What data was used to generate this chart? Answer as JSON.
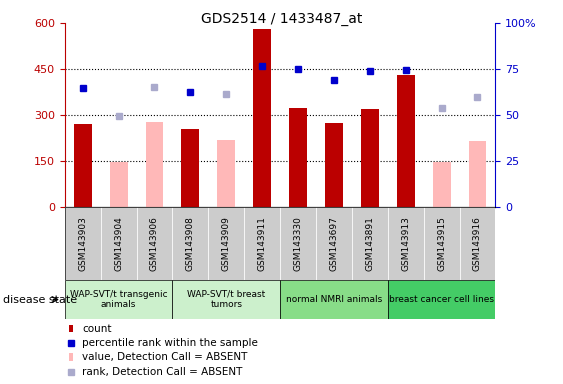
{
  "title": "GDS2514 / 1433487_at",
  "samples": [
    "GSM143903",
    "GSM143904",
    "GSM143906",
    "GSM143908",
    "GSM143909",
    "GSM143911",
    "GSM143330",
    "GSM143697",
    "GSM143891",
    "GSM143913",
    "GSM143915",
    "GSM143916"
  ],
  "count_values": [
    270,
    null,
    null,
    255,
    null,
    580,
    325,
    275,
    320,
    430,
    null,
    null
  ],
  "absent_value_bars": [
    null,
    148,
    278,
    null,
    220,
    null,
    null,
    null,
    null,
    null,
    148,
    215
  ],
  "blue_squares": [
    390,
    null,
    null,
    375,
    null,
    460,
    450,
    415,
    445,
    448,
    null,
    null
  ],
  "lavender_squares": [
    null,
    298,
    392,
    null,
    370,
    null,
    null,
    null,
    null,
    null,
    325,
    358
  ],
  "ylim_left": [
    0,
    600
  ],
  "ylim_right": [
    0,
    100
  ],
  "yticks_left": [
    0,
    150,
    300,
    450,
    600
  ],
  "yticks_right": [
    0,
    25,
    50,
    75,
    100
  ],
  "ytick_labels_right": [
    "0",
    "25",
    "50",
    "75",
    "100%"
  ],
  "bar_color_dark": "#bb0000",
  "bar_color_pink": "#ffb8b8",
  "blue_sq_color": "#0000cc",
  "lavender_sq_color": "#aaaacc",
  "tick_bg_color": "#cccccc",
  "group_sample_list": [
    {
      "samples": [
        "GSM143903",
        "GSM143904",
        "GSM143906"
      ],
      "label": "WAP-SVT/t transgenic\nanimals",
      "color": "#ccf0cc"
    },
    {
      "samples": [
        "GSM143908",
        "GSM143909",
        "GSM143911"
      ],
      "label": "WAP-SVT/t breast\ntumors",
      "color": "#ccf0cc"
    },
    {
      "samples": [
        "GSM143330",
        "GSM143697",
        "GSM143891"
      ],
      "label": "normal NMRI animals",
      "color": "#88dd88"
    },
    {
      "samples": [
        "GSM143913",
        "GSM143915",
        "GSM143916"
      ],
      "label": "breast cancer cell lines",
      "color": "#44cc66"
    }
  ],
  "disease_state_label": "disease state",
  "dotted_lines": [
    150,
    300,
    450
  ],
  "bar_width": 0.5
}
